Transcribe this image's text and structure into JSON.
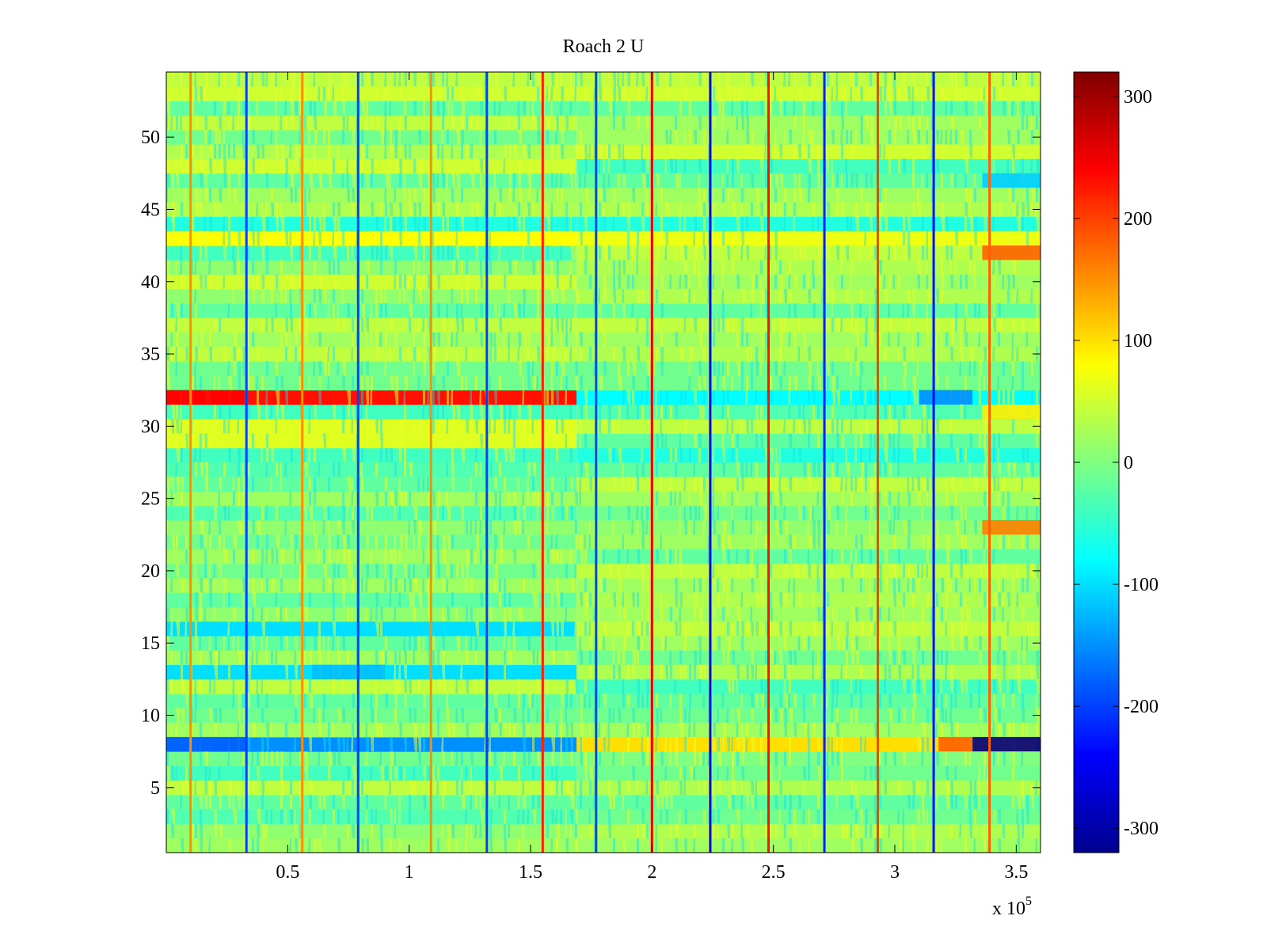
{
  "chart_data": {
    "type": "heatmap",
    "title": "Roach 2 U",
    "xlabel": "",
    "ylabel": "",
    "x_exponent_label": "x 10",
    "x_exponent": "5",
    "xlim": [
      0,
      360000
    ],
    "ylim": [
      0.5,
      54.5
    ],
    "rows": 54,
    "x_ticks": [
      50000,
      100000,
      150000,
      200000,
      250000,
      300000,
      350000
    ],
    "x_tick_labels": [
      "0.5",
      "1",
      "1.5",
      "2",
      "2.5",
      "3",
      "3.5"
    ],
    "y_ticks": [
      5,
      10,
      15,
      20,
      25,
      30,
      35,
      40,
      45,
      50
    ],
    "y_tick_labels": [
      "5",
      "10",
      "15",
      "20",
      "25",
      "30",
      "35",
      "40",
      "45",
      "50"
    ],
    "grid": false,
    "colormap": "jet",
    "clim": [
      -320,
      320
    ],
    "colorbar": {
      "placement": "right",
      "ticks": [
        300,
        200,
        100,
        0,
        -100,
        -200,
        -300
      ],
      "tick_labels": [
        "300",
        "200",
        "100",
        "0",
        "-100",
        "-200",
        "-300"
      ]
    },
    "segment_boundary_x": 169000,
    "row_levels_first_segment": [
      20,
      10,
      -30,
      -20,
      40,
      -40,
      -10,
      -150,
      20,
      -10,
      -20,
      40,
      -100,
      20,
      -20,
      -100,
      10,
      -20,
      20,
      -10,
      20,
      -10,
      10,
      -30,
      20,
      -20,
      -30,
      -40,
      60,
      60,
      -40,
      230,
      -10,
      -10,
      40,
      20,
      40,
      -20,
      10,
      50,
      10,
      -40,
      80,
      -60,
      30,
      20,
      -20,
      50,
      30,
      -10,
      40,
      -20,
      50,
      40
    ],
    "row_levels_second_segment": [
      20,
      30,
      -10,
      -20,
      30,
      -10,
      0,
      100,
      20,
      -10,
      -20,
      -40,
      30,
      -10,
      20,
      40,
      20,
      30,
      20,
      40,
      -20,
      20,
      10,
      -10,
      20,
      40,
      -20,
      -60,
      -20,
      40,
      -30,
      -80,
      -10,
      -10,
      30,
      20,
      40,
      -20,
      30,
      20,
      30,
      40,
      70,
      -60,
      30,
      20,
      -20,
      -40,
      50,
      20,
      20,
      -20,
      50,
      40
    ],
    "vertical_stripes": [
      {
        "x": 10000,
        "value": 150
      },
      {
        "x": 33000,
        "value": -200
      },
      {
        "x": 56000,
        "value": 150
      },
      {
        "x": 79000,
        "value": -200
      },
      {
        "x": 109000,
        "value": 150
      },
      {
        "x": 132000,
        "value": -200
      },
      {
        "x": 155000,
        "value": 220
      },
      {
        "x": 177000,
        "value": -200
      },
      {
        "x": 200000,
        "value": 250
      },
      {
        "x": 224000,
        "value": -250
      },
      {
        "x": 248000,
        "value": 230
      },
      {
        "x": 271000,
        "value": -220
      },
      {
        "x": 293000,
        "value": 200
      },
      {
        "x": 316000,
        "value": -230
      },
      {
        "x": 339000,
        "value": 180
      }
    ],
    "blocks": [
      {
        "x0": 0,
        "x1": 32000,
        "y": 32,
        "value": 240
      },
      {
        "x0": 0,
        "x1": 33000,
        "y": 8,
        "value": -180
      },
      {
        "x0": 310000,
        "x1": 332000,
        "y": 32,
        "value": -150
      },
      {
        "x0": 318000,
        "x1": 332000,
        "y": 8,
        "value": 180
      },
      {
        "x0": 332000,
        "x1": 360000,
        "y": 8,
        "value": -320
      },
      {
        "x0": 336000,
        "x1": 360000,
        "y": 23,
        "value": 160
      },
      {
        "x0": 336000,
        "x1": 360000,
        "y": 42,
        "value": 180
      },
      {
        "x0": 336000,
        "x1": 360000,
        "y": 47,
        "value": -110
      },
      {
        "x0": 336000,
        "x1": 360000,
        "y": 31,
        "value": 90
      },
      {
        "x0": 60000,
        "x1": 90000,
        "y": 13,
        "value": -120
      }
    ]
  }
}
